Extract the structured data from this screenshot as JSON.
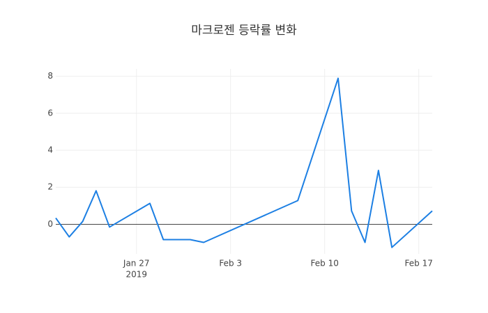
{
  "chart_data": {
    "type": "line",
    "title": "마크로젠 등락률 변화",
    "x": [
      "2019-01-21",
      "2019-01-22",
      "2019-01-23",
      "2019-01-24",
      "2019-01-25",
      "2019-01-28",
      "2019-01-29",
      "2019-01-31",
      "2019-02-01",
      "2019-02-08",
      "2019-02-11",
      "2019-02-12",
      "2019-02-13",
      "2019-02-14",
      "2019-02-15",
      "2019-02-18"
    ],
    "series": [
      {
        "color": "#1c7fe3",
        "values": [
          0.34,
          -0.68,
          0.15,
          1.81,
          -0.15,
          1.13,
          -0.83,
          -0.83,
          -0.98,
          1.28,
          7.89,
          0.72,
          -0.98,
          2.91,
          -1.25,
          0.72
        ]
      }
    ],
    "xlim": [
      "2019-01-21",
      "2019-02-18"
    ],
    "xticks": [
      {
        "value": "2019-01-27",
        "label": "Jan 27"
      },
      {
        "value": "2019-02-03",
        "label": "Feb 3"
      },
      {
        "value": "2019-02-10",
        "label": "Feb 10"
      },
      {
        "value": "2019-02-17",
        "label": "Feb 17"
      }
    ],
    "x_year_label": "2019",
    "ylim": [
      -1.6,
      8.4
    ],
    "yticks": [
      0,
      2,
      4,
      6,
      8
    ],
    "grid": true,
    "zeroline": true
  }
}
